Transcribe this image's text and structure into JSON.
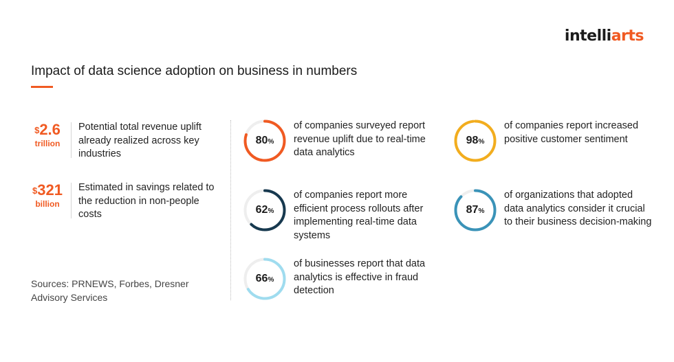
{
  "logo": {
    "part1": "intelli",
    "part2": "arts"
  },
  "title": "Impact of data science adoption on business in numbers",
  "money_stats": [
    {
      "currency": "$",
      "value": "2.6",
      "unit": "trillion",
      "text": "Potential total revenue uplift already realized across key industries"
    },
    {
      "currency": "$",
      "value": "321",
      "unit": "billion",
      "text": "Estimated in savings related to the reduction in non-people costs"
    }
  ],
  "sources": "Sources: PRNEWS, Forbes, Dresner Advisory Services",
  "stats": [
    {
      "value": 80,
      "suffix": "%",
      "color": "#f05a22",
      "text": "of companies surveyed report revenue uplift due to real-time data analytics"
    },
    {
      "value": 62,
      "suffix": "%",
      "color": "#17394f",
      "text": "of companies report more efficient process rollouts after implementing real-time data systems"
    },
    {
      "value": 66,
      "suffix": "%",
      "color": "#9fdcef",
      "text": "of businesses report that data analytics is effective in fraud detection"
    },
    {
      "value": 98,
      "suffix": "%",
      "color": "#f2ad1e",
      "text": "of companies report increased positive customer sentiment"
    },
    {
      "value": 87,
      "suffix": "%",
      "color": "#3a93b8",
      "text": "of organizations that adopted data analytics consider it crucial to their business decision-making"
    }
  ]
}
